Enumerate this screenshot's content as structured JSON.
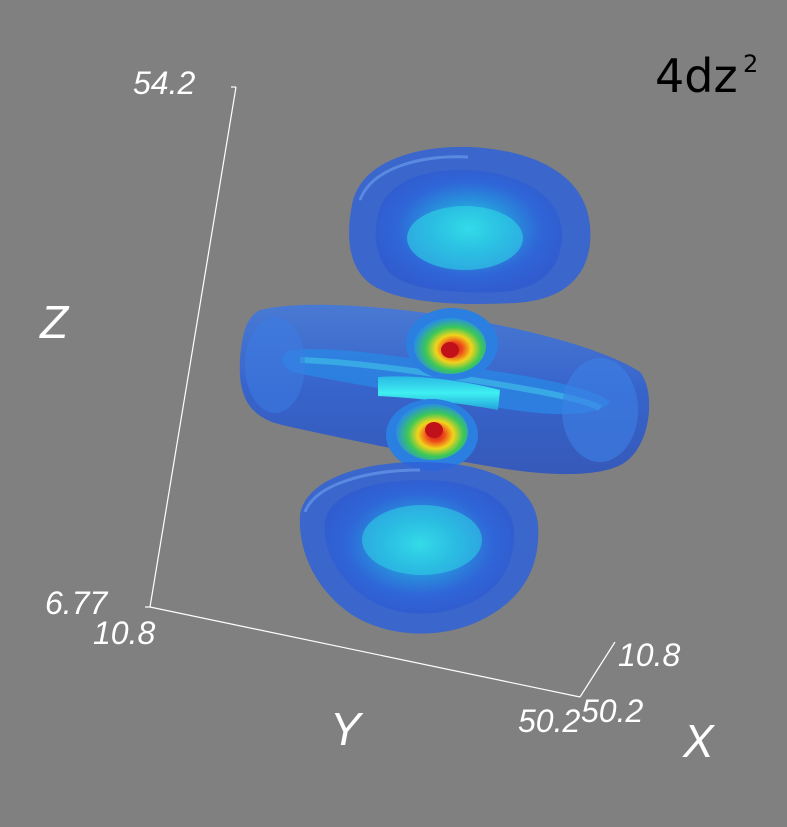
{
  "orbital_label": "4dz²",
  "orbital_label_main": "4dz",
  "orbital_label_sup": "2",
  "axes": {
    "z": {
      "name": "Z",
      "max": "54.2",
      "min": "6.77"
    },
    "y": {
      "name": "Y",
      "min": "10.8",
      "max": "50.2"
    },
    "x": {
      "name": "X",
      "min": "10.8",
      "max": "50.2"
    }
  },
  "colors": {
    "background": "#808080",
    "shell_outer": "#2a5fd8",
    "shell_inner": "#1fd0e0",
    "core_hot": "#e8321a",
    "core_mid": "#f0d21a",
    "core_cool": "#22c060"
  }
}
